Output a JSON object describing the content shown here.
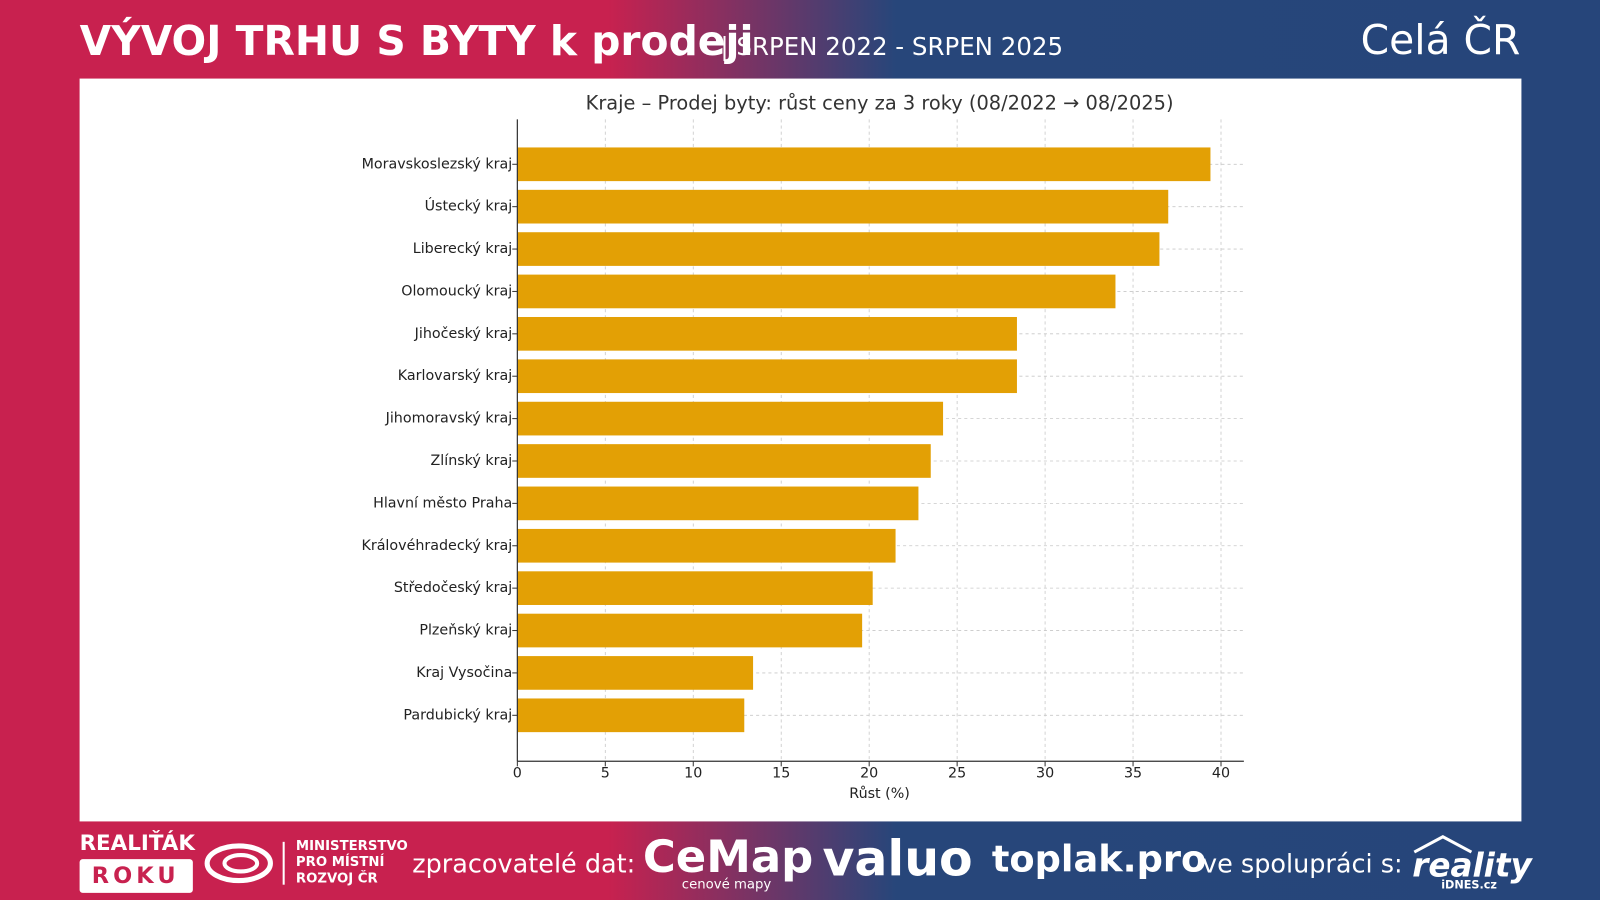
{
  "header": {
    "title": "VÝVOJ TRHU S BYTY k prodeji",
    "period": "| SRPEN 2022 - SRPEN 2025",
    "region": "Celá ČR"
  },
  "chart_data": {
    "type": "barh",
    "title": "Kraje – Prodej byty: růst ceny za 3 roky (08/2022 → 08/2025)",
    "x_label": "Růst (%)",
    "categories": [
      "Moravskoslezský kraj",
      "Ústecký kraj",
      "Liberecký kraj",
      "Olomoucký kraj",
      "Jihočeský kraj",
      "Karlovarský kraj",
      "Jihomoravský kraj",
      "Zlínský kraj",
      "Hlavní město Praha",
      "Královéhradecký kraj",
      "Středočeský kraj",
      "Plzeňský kraj",
      "Kraj Vysočina",
      "Pardubický kraj"
    ],
    "values": [
      39.4,
      37.0,
      36.5,
      34.0,
      28.4,
      28.4,
      24.2,
      23.5,
      22.8,
      21.5,
      20.2,
      19.6,
      13.4,
      12.9
    ],
    "color": "#e3a005",
    "xlim": [
      0,
      41.3
    ],
    "xticks": [
      0,
      5,
      10,
      15,
      20,
      25,
      30,
      35,
      40
    ],
    "grid": true
  },
  "footer": {
    "realitak": "REALIŤÁK",
    "roku": "ROKU",
    "ministry": [
      "MINISTERSTVO",
      "PRO MÍSTNÍ",
      "ROZVOJ ČR"
    ],
    "processors": "zpracovatelé dat:",
    "cemap": "CeMap",
    "cemap_sub": "cenové mapy",
    "valuo": "valuo",
    "toplak": "toplak.pro",
    "cooperation": "ve spolupráci s:",
    "reality": "reality",
    "idnes": "iDNES.cz"
  }
}
